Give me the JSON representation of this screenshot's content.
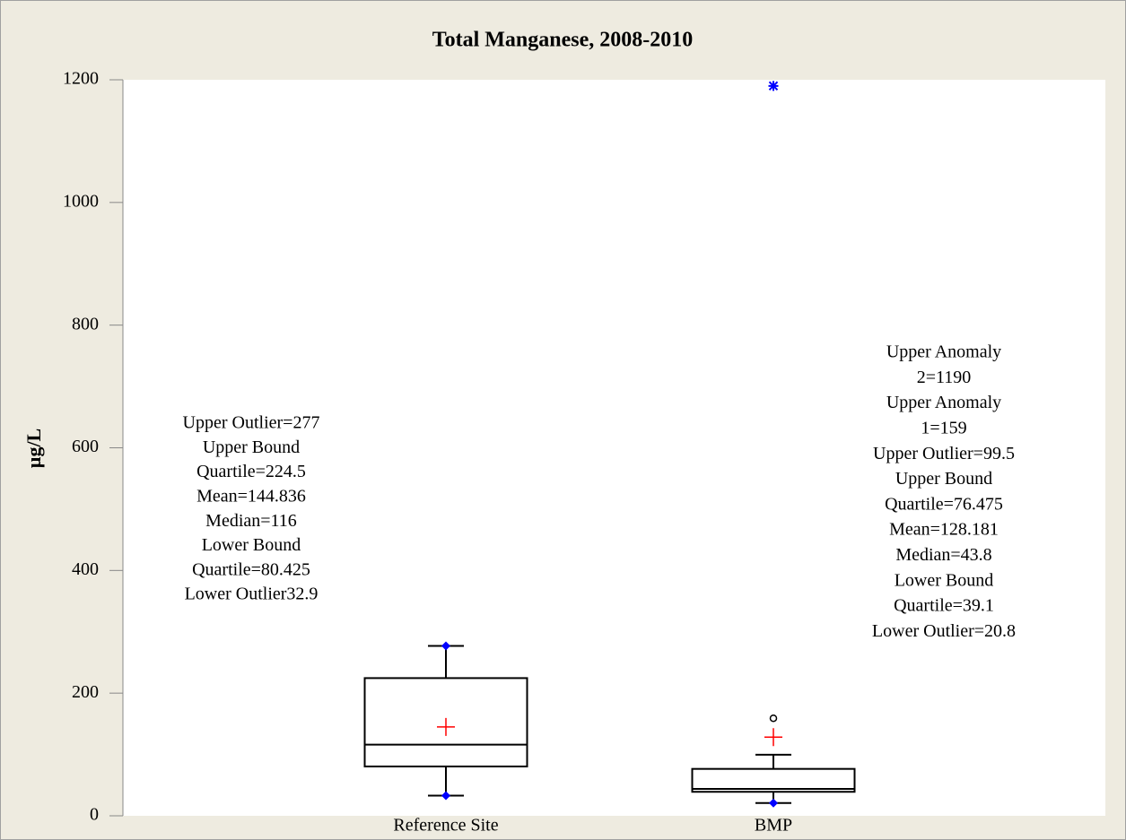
{
  "chart_data": {
    "type": "box",
    "title": "Total Manganese, 2008-2010",
    "y_label": "µg/L",
    "categories": [
      "Reference Site",
      "BMP"
    ],
    "boxes": [
      {
        "whisker_low": 32.9,
        "q1": 80.425,
        "median": 116,
        "q3": 224.5,
        "whisker_high": 277,
        "mean": 144.836,
        "outliers": [],
        "extremes": []
      },
      {
        "whisker_low": 20.8,
        "q1": 39.1,
        "median": 43.8,
        "q3": 76.475,
        "whisker_high": 99.5,
        "mean": 128.181,
        "outliers": [
          159
        ],
        "extremes": [
          1190
        ]
      }
    ],
    "annotations": [
      [
        "Upper Outlier=277",
        "Upper Bound",
        "Quartile=224.5",
        "Mean=144.836",
        "Median=116",
        "Lower Bound",
        "Quartile=80.425",
        "Lower Outlier32.9"
      ],
      [
        "Upper Anomaly",
        "2=1190",
        "Upper Anomaly",
        "1=159",
        "Upper Outlier=99.5",
        "Upper Bound",
        "Quartile=76.475",
        "Mean=128.181",
        "Median=43.8",
        "Lower Bound",
        "Quartile=39.1",
        "Lower Outlier=20.8"
      ]
    ],
    "ylim": [
      0,
      1200
    ],
    "yticks": [
      0,
      200,
      400,
      600,
      800,
      1000,
      1200
    ],
    "box_color": "#000000",
    "mean_color": "#ff0000",
    "marker_color": "#0000ff"
  }
}
